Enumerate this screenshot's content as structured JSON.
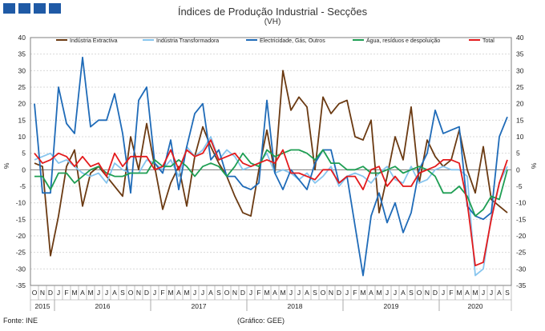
{
  "logo": {
    "color": "#1f5aa6"
  },
  "header": {
    "title": "Índices de Produção Industrial - Secções",
    "subtitle": "(VH)"
  },
  "footer": {
    "source": "Fonte: INE",
    "credit": "(Gráfico: GEE)"
  },
  "chart_data": {
    "type": "line",
    "title": "Índices de Produção Industrial - Secções",
    "subtitle": "(VH)",
    "ylabel": "%",
    "ylim": [
      -35,
      40
    ],
    "yticks": [
      -35,
      -30,
      -25,
      -20,
      -15,
      -10,
      -5,
      0,
      5,
      10,
      15,
      20,
      25,
      30,
      35,
      40
    ],
    "grid": true,
    "legend": "top",
    "months": [
      "O",
      "N",
      "D",
      "J",
      "F",
      "M",
      "A",
      "M",
      "J",
      "J",
      "A",
      "S",
      "O",
      "N",
      "D",
      "J",
      "F",
      "M",
      "A",
      "M",
      "J",
      "J",
      "A",
      "S",
      "O",
      "N",
      "D",
      "J",
      "F",
      "M",
      "A",
      "M",
      "J",
      "J",
      "A",
      "S",
      "O",
      "N",
      "D",
      "J",
      "F",
      "M",
      "A",
      "M",
      "J",
      "J",
      "A",
      "S",
      "O",
      "N",
      "D",
      "J",
      "F",
      "M",
      "A",
      "M",
      "J",
      "J",
      "A",
      "S"
    ],
    "years": [
      {
        "label": "2015",
        "start": 0,
        "count": 3
      },
      {
        "label": "2016",
        "start": 3,
        "count": 12
      },
      {
        "label": "2017",
        "start": 15,
        "count": 12
      },
      {
        "label": "2018",
        "start": 27,
        "count": 12
      },
      {
        "label": "2019",
        "start": 39,
        "count": 12
      },
      {
        "label": "2020",
        "start": 51,
        "count": 9
      }
    ],
    "series": [
      {
        "name": "Indústria Extractiva",
        "color": "#6b3a12",
        "values": [
          2,
          1,
          -26,
          -14,
          1,
          6,
          -11,
          -1,
          1,
          -2,
          -5,
          -8,
          10,
          0,
          14,
          1,
          -12,
          -4,
          1,
          -11,
          4,
          13,
          7,
          2,
          -2,
          -8,
          -13,
          -14,
          0,
          12,
          -1,
          30,
          18,
          22,
          19,
          0,
          22,
          17,
          20,
          21,
          10,
          9,
          15,
          -13,
          -2,
          10,
          3,
          19,
          -4,
          9,
          4,
          1,
          3,
          12,
          0,
          -7,
          7,
          -9,
          -11,
          -13
        ]
      },
      {
        "name": "Indústria Transformadora",
        "color": "#87c5ee",
        "values": [
          3,
          4,
          5,
          2,
          3,
          1,
          -1,
          -2,
          -1,
          -4,
          2,
          0,
          -1,
          -1,
          3,
          2,
          0,
          3,
          -2,
          7,
          4,
          6,
          10,
          3,
          6,
          4,
          0,
          1,
          2,
          5,
          -1,
          0,
          -1,
          -3,
          -1,
          -4,
          -2,
          1,
          -5,
          -2,
          -1,
          -2,
          -4,
          -1,
          1,
          -3,
          -4,
          1,
          -4,
          -3,
          0,
          1,
          0,
          0,
          -2,
          -32,
          -30,
          -14,
          -4,
          1
        ]
      },
      {
        "name": "Electricidade, Gás, Outros",
        "color": "#1f6bb8",
        "values": [
          20,
          -7,
          -7,
          25,
          14,
          11,
          34,
          13,
          15,
          15,
          23,
          11,
          -7,
          21,
          25,
          2,
          -1,
          9,
          -6,
          7,
          17,
          20,
          3,
          6,
          -2,
          -2,
          -5,
          -6,
          -4,
          21,
          -1,
          -6,
          0,
          -3,
          -6,
          2,
          6,
          6,
          -4,
          -2,
          -17,
          -32,
          -14,
          -7,
          -16,
          -10,
          -19,
          -13,
          0,
          5,
          18,
          11,
          12,
          13,
          -11,
          -14,
          -15,
          -13,
          10,
          16
        ]
      },
      {
        "name": "Água, resíduos e despoluição",
        "color": "#1e9e53",
        "values": [
          -2,
          -2,
          -6,
          -1,
          -1,
          -4,
          -2,
          0,
          1,
          -1,
          -2,
          -2,
          -1,
          -1,
          -1,
          3,
          1,
          1,
          3,
          1,
          -2,
          1,
          2,
          1,
          -2,
          1,
          5,
          2,
          1,
          6,
          4,
          5,
          6,
          6,
          5,
          3,
          6,
          2,
          2,
          0,
          0,
          1,
          -1,
          -1,
          0,
          1,
          -1,
          0,
          1,
          0,
          -2,
          -7,
          -7,
          -5,
          -8,
          -14,
          -12,
          -8,
          -9,
          0
        ]
      },
      {
        "name": "Total",
        "color": "#e31a1c",
        "values": [
          5,
          2,
          3,
          5,
          4,
          1,
          4,
          1,
          2,
          -2,
          5,
          1,
          4,
          4,
          4,
          0,
          1,
          6,
          0,
          6,
          4,
          5,
          9,
          3,
          4,
          5,
          2,
          1,
          2,
          3,
          2,
          6,
          -1,
          -1,
          -2,
          -3,
          0,
          0,
          -4,
          -2,
          -2,
          -6,
          0,
          1,
          -5,
          -2,
          -5,
          -5,
          -1,
          0,
          1,
          3,
          3,
          2,
          -10,
          -29,
          -28,
          -15,
          -4,
          3
        ]
      }
    ]
  }
}
